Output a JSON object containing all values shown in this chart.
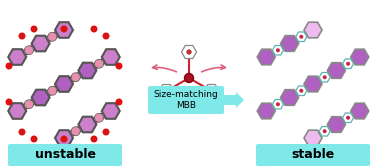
{
  "bg_color": "#ffffff",
  "label_bg": "#7fe8e8",
  "hex_dark": "#b060c0",
  "hex_mid": "#cc80cc",
  "hex_light": "#dda0dd",
  "hex_pale": "#eebbee",
  "node_pink": "#e890b0",
  "node_red": "#dd1111",
  "node_small_red": "#cc2244",
  "edge_gray": "#888888",
  "edge_dark": "#555555",
  "edge_teal": "#60b0b0",
  "edge_light_gray": "#aaaaaa",
  "mbb_box_color": "#7fe8e8",
  "arrow_pink": "#e06080",
  "title": "Size-matching\nMBB",
  "label_left": "unstable",
  "label_right": "stable",
  "font_size_label": 9,
  "font_size_title": 6.5
}
